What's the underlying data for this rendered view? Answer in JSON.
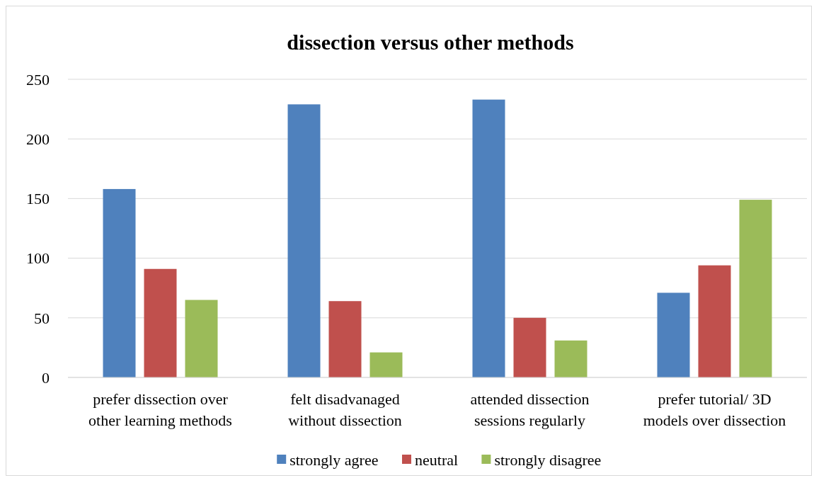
{
  "chart_data": {
    "type": "bar",
    "title": "dissection versus other methods",
    "categories": [
      "prefer dissection over other learning methods",
      "felt disadvanaged without dissection",
      "attended dissection sessions regularly",
      "prefer tutorial/ 3D models over dissection"
    ],
    "series": [
      {
        "name": "strongly agree",
        "color": "#4f81bd",
        "values": [
          158,
          229,
          233,
          71
        ]
      },
      {
        "name": "neutral",
        "color": "#c0504d",
        "values": [
          91,
          64,
          50,
          94
        ]
      },
      {
        "name": "strongly disagree",
        "color": "#9bbb59",
        "values": [
          65,
          21,
          31,
          149
        ]
      }
    ],
    "ylim": [
      0,
      250
    ],
    "yticks": [
      0,
      50,
      100,
      150,
      200,
      250
    ],
    "grid": "y",
    "legend": "bottom"
  }
}
